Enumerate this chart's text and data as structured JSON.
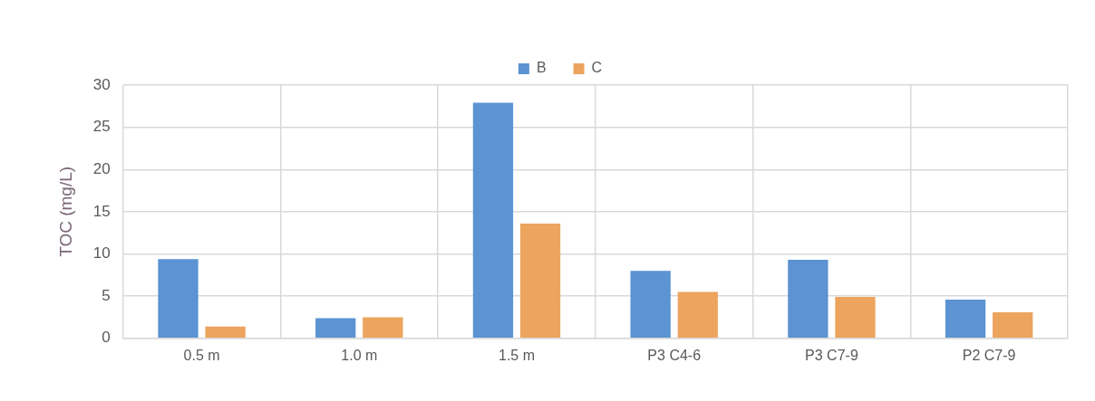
{
  "chart_data": {
    "type": "bar",
    "ylabel": "TOC (mg/L)",
    "categories": [
      "0.5 m",
      "1.0 m",
      "1.5 m",
      "P3 C4-6",
      "P3 C7-9",
      "P2 C7-9"
    ],
    "series": [
      {
        "name": "B",
        "color": "#5b93d3",
        "values": [
          9.4,
          2.4,
          27.9,
          8.0,
          9.3,
          4.6
        ]
      },
      {
        "name": "C",
        "color": "#eda45e",
        "values": [
          1.4,
          2.5,
          13.6,
          5.5,
          4.9,
          3.1
        ]
      }
    ],
    "ylim": [
      0,
      30
    ],
    "yticks": [
      0,
      5,
      10,
      15,
      20,
      25,
      30
    ],
    "grid": true,
    "legend": "top"
  }
}
